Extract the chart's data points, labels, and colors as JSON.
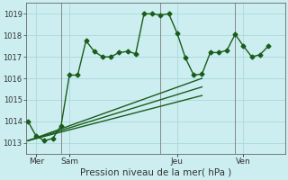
{
  "xlabel": "Pression niveau de la mer( hPa )",
  "bg_color": "#cceef0",
  "grid_color": "#aad8dc",
  "line_color": "#1a5c1a",
  "vline_color": "#888888",
  "ylim": [
    1012.5,
    1019.5
  ],
  "xlim": [
    -0.5,
    62
  ],
  "yticks": [
    1013,
    1014,
    1015,
    1016,
    1017,
    1018,
    1019
  ],
  "day_positions": [
    2,
    10,
    36,
    52
  ],
  "day_labels": [
    "Mer",
    "Sam",
    "Jeu",
    "Ven"
  ],
  "vlines": [
    8,
    32,
    50
  ],
  "series1": [
    [
      0,
      1014.0
    ],
    [
      2,
      1013.3
    ],
    [
      4,
      1013.1
    ],
    [
      6,
      1013.2
    ],
    [
      8,
      1013.8
    ],
    [
      10,
      1016.15
    ],
    [
      12,
      1016.15
    ],
    [
      14,
      1017.75
    ],
    [
      16,
      1017.25
    ],
    [
      18,
      1017.0
    ],
    [
      20,
      1017.0
    ],
    [
      22,
      1017.2
    ],
    [
      24,
      1017.25
    ],
    [
      26,
      1017.15
    ],
    [
      28,
      1019.0
    ],
    [
      30,
      1019.0
    ],
    [
      32,
      1018.95
    ],
    [
      34,
      1019.0
    ],
    [
      36,
      1018.1
    ],
    [
      38,
      1016.95
    ],
    [
      40,
      1016.15
    ],
    [
      42,
      1016.2
    ],
    [
      44,
      1017.2
    ],
    [
      46,
      1017.2
    ],
    [
      48,
      1017.3
    ],
    [
      50,
      1018.05
    ],
    [
      52,
      1017.5
    ],
    [
      54,
      1017.0
    ],
    [
      56,
      1017.1
    ],
    [
      58,
      1017.5
    ]
  ],
  "line2": [
    [
      0,
      1013.1
    ],
    [
      42,
      1015.2
    ]
  ],
  "line3": [
    [
      0,
      1013.1
    ],
    [
      42,
      1015.6
    ]
  ],
  "line4": [
    [
      0,
      1013.1
    ],
    [
      42,
      1016.0
    ]
  ],
  "markersize": 2.5,
  "linewidth": 1.0,
  "ytick_fontsize": 6,
  "xtick_fontsize": 6.5,
  "xlabel_fontsize": 7.5
}
